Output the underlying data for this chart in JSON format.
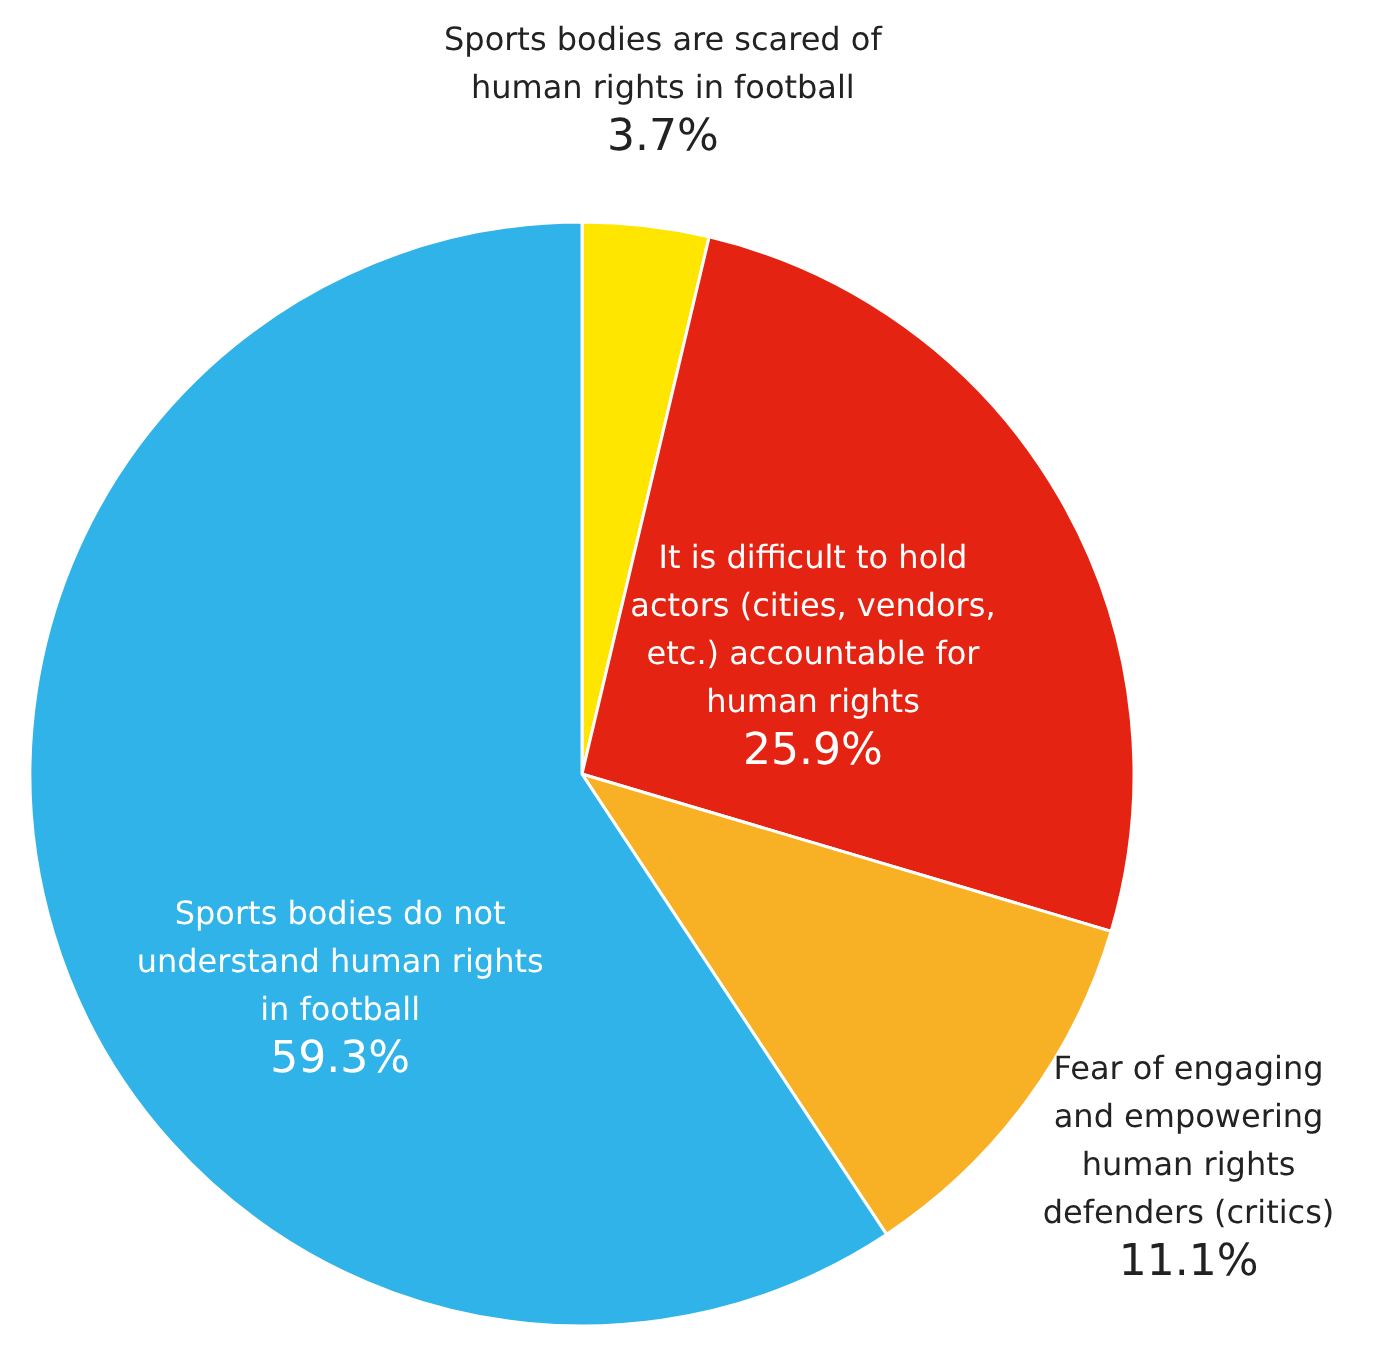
{
  "chart_data": {
    "type": "pie",
    "categories": [
      "Sports bodies are scared of human rights in football",
      "It is difficult to hold actors (cities, vendors, etc.) accountable for human rights",
      "Fear of engaging and empowering human rights defenders (critics)",
      "Sports bodies do not understand human rights in football"
    ],
    "values": [
      3.7,
      25.9,
      11.1,
      59.3
    ],
    "colors": [
      "#ffe600",
      "#e42313",
      "#f8b124",
      "#2fb3e8"
    ],
    "value_labels": [
      "3.7%",
      "25.9%",
      "11.1%",
      "59.3%"
    ]
  }
}
